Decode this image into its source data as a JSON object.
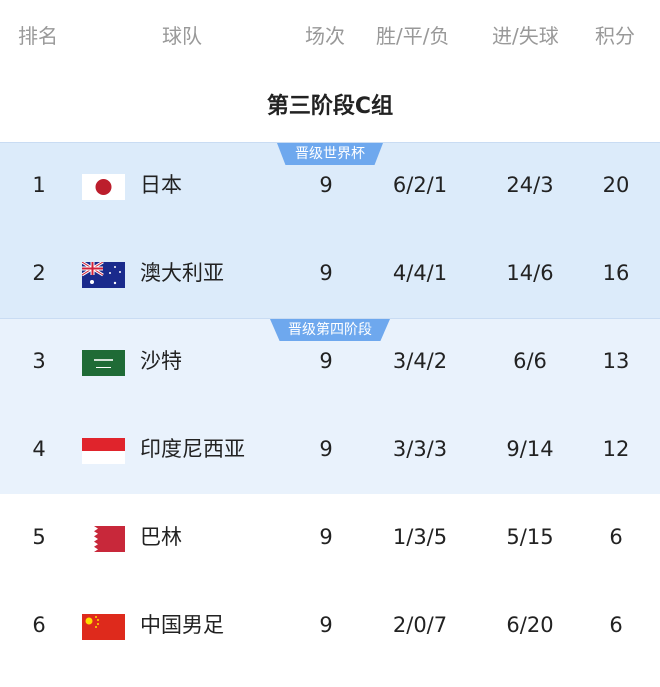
{
  "header": {
    "rank": "排名",
    "team": "球队",
    "played": "场次",
    "wdl": "胜/平/负",
    "goals": "进/失球",
    "points": "积分"
  },
  "title": "第三阶段C组",
  "zones": [
    {
      "label": "晋级世界杯",
      "color": "#dcebfa"
    },
    {
      "label": "晋级第四阶段",
      "color": "#e9f2fc"
    }
  ],
  "badge_color": "#6ea8ee",
  "rows": [
    {
      "rank": "1",
      "team": "日本",
      "flag": "japan-flag",
      "played": "9",
      "wdl": "6/2/1",
      "goals": "24/3",
      "points": "20"
    },
    {
      "rank": "2",
      "team": "澳大利亚",
      "flag": "australia-flag",
      "played": "9",
      "wdl": "4/4/1",
      "goals": "14/6",
      "points": "16"
    },
    {
      "rank": "3",
      "team": "沙特",
      "flag": "saudi-arabia-flag",
      "played": "9",
      "wdl": "3/4/2",
      "goals": "6/6",
      "points": "13"
    },
    {
      "rank": "4",
      "team": "印度尼西亚",
      "flag": "indonesia-flag",
      "played": "9",
      "wdl": "3/3/3",
      "goals": "9/14",
      "points": "12"
    },
    {
      "rank": "5",
      "team": "巴林",
      "flag": "bahrain-flag",
      "played": "9",
      "wdl": "1/3/5",
      "goals": "5/15",
      "points": "6"
    },
    {
      "rank": "6",
      "team": "中国男足",
      "flag": "china-flag",
      "played": "9",
      "wdl": "2/0/7",
      "goals": "6/20",
      "points": "6"
    }
  ]
}
